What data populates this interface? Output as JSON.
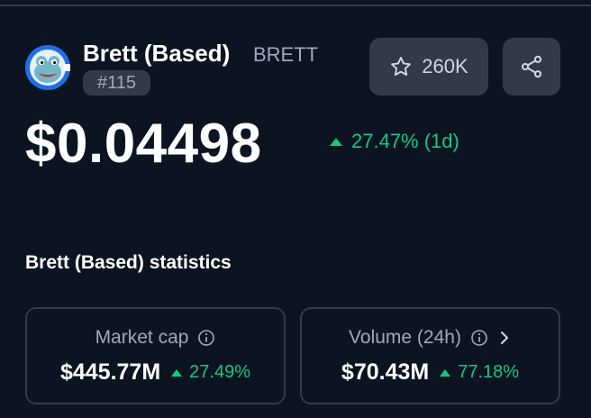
{
  "coin": {
    "name": "Brett (Based)",
    "symbol": "BRETT",
    "rank": "#115",
    "logo_icon": "brett-frog-logo-icon"
  },
  "actions": {
    "watchlist_count": "260K",
    "watchlist_icon": "star-outline-icon",
    "share_icon": "share-icon"
  },
  "price": {
    "value": "$0.04498",
    "change": "27.47% (1d)",
    "direction": "up"
  },
  "statistics": {
    "title": "Brett (Based) statistics",
    "cards": [
      {
        "label": "Market cap",
        "value": "$445.77M",
        "change": "27.49%",
        "direction": "up",
        "has_info": true,
        "has_chevron": false
      },
      {
        "label": "Volume (24h)",
        "value": "$70.43M",
        "change": "77.18%",
        "direction": "up",
        "has_info": true,
        "has_chevron": true
      }
    ]
  },
  "colors": {
    "background": "#0d1421",
    "surface": "#323a48",
    "text_primary": "#ffffff",
    "text_secondary": "#a1a7bb",
    "positive": "#16c784",
    "logo_ring": "#1f6fe6"
  }
}
